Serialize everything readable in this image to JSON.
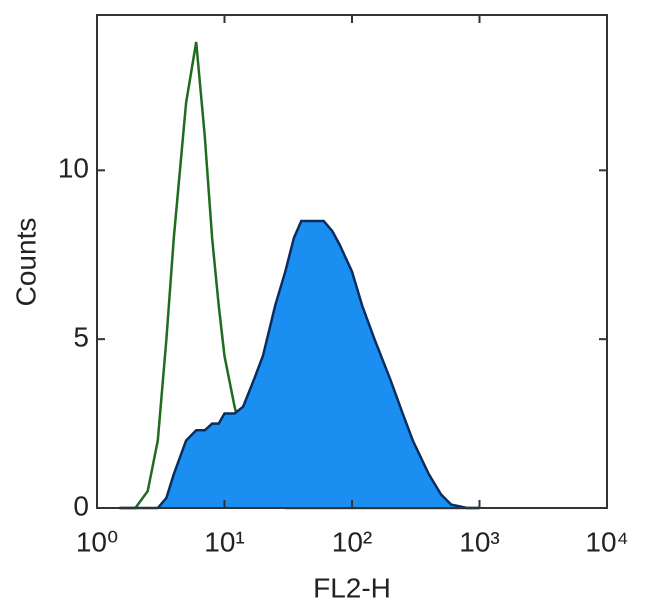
{
  "chart_data": {
    "type": "line",
    "xlabel": "FL2-H",
    "ylabel": "Counts",
    "xscale": "log",
    "x": [
      1.5,
      2,
      2.5,
      3,
      3.5,
      4,
      5,
      6,
      7,
      8,
      9,
      10,
      12,
      14,
      17,
      20,
      25,
      30,
      35,
      40,
      50,
      60,
      70,
      80,
      100,
      120,
      150,
      200,
      250,
      300,
      400,
      500,
      600,
      800,
      1000
    ],
    "series": [
      {
        "color": "#1f6b1f",
        "fill": false,
        "values": [
          0,
          0,
          0.5,
          2,
          5,
          8,
          12,
          13.8,
          11,
          8,
          6,
          4.5,
          3,
          2,
          1,
          0.5,
          0.2,
          0,
          0,
          0,
          0,
          0,
          0,
          0,
          0,
          0,
          0,
          0,
          0,
          0,
          0,
          0,
          0,
          0,
          0
        ]
      },
      {
        "color": "#0b2d5e",
        "fill": true,
        "fill_color": "#1b8ef2",
        "values": [
          0,
          0,
          0,
          0,
          0.3,
          1,
          2,
          2.3,
          2.3,
          2.5,
          2.5,
          2.8,
          2.8,
          3,
          3.8,
          4.5,
          6,
          7,
          8,
          8.5,
          8.5,
          8.5,
          8.2,
          7.8,
          7,
          6,
          5,
          3.8,
          2.8,
          2,
          1,
          0.4,
          0.1,
          0,
          0
        ]
      }
    ],
    "xlim": [
      1,
      10000
    ],
    "xticks": [
      {
        "value": 1,
        "label": "10⁰"
      },
      {
        "value": 10,
        "label": "10¹"
      },
      {
        "value": 100,
        "label": "10²"
      },
      {
        "value": 1000,
        "label": "10³"
      },
      {
        "value": 10000,
        "label": "10⁴"
      }
    ],
    "ylim": [
      0,
      14.6
    ],
    "yticks": [
      0,
      5,
      10
    ]
  }
}
